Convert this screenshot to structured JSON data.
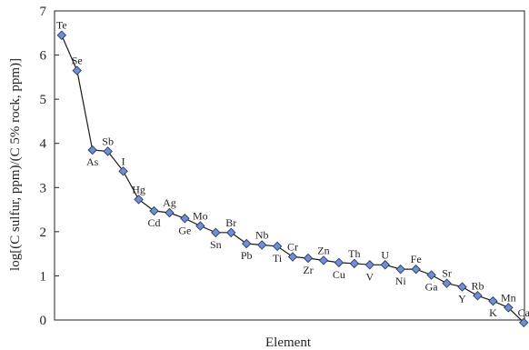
{
  "chart_data": {
    "type": "line",
    "xlabel": "Element",
    "ylabel": "log[(C sulfur, ppm)/(C 5% rock, ppm)]",
    "ylim": [
      0,
      7
    ],
    "yticks": [
      "0",
      "1",
      "2",
      "3",
      "4",
      "5",
      "6",
      "7"
    ],
    "grid": false,
    "colors": {
      "line": "#1a1a1a",
      "marker": "#6f8fd0",
      "marker_edge": "#2b3a6b"
    },
    "points": [
      {
        "label": "Te",
        "y": 6.45,
        "pos": "above"
      },
      {
        "label": "Se",
        "y": 5.65,
        "pos": "above"
      },
      {
        "label": "As",
        "y": 3.85,
        "pos": "below"
      },
      {
        "label": "Sb",
        "y": 3.82,
        "pos": "above"
      },
      {
        "label": "I",
        "y": 3.37,
        "pos": "above"
      },
      {
        "label": "Hg",
        "y": 2.73,
        "pos": "above"
      },
      {
        "label": "Cd",
        "y": 2.47,
        "pos": "below"
      },
      {
        "label": "Ag",
        "y": 2.43,
        "pos": "above"
      },
      {
        "label": "Ge",
        "y": 2.3,
        "pos": "below"
      },
      {
        "label": "Mo",
        "y": 2.13,
        "pos": "above"
      },
      {
        "label": "Sn",
        "y": 1.98,
        "pos": "below"
      },
      {
        "label": "Br",
        "y": 1.98,
        "pos": "above"
      },
      {
        "label": "Pb",
        "y": 1.73,
        "pos": "below"
      },
      {
        "label": "Nb",
        "y": 1.7,
        "pos": "above"
      },
      {
        "label": "Ti",
        "y": 1.67,
        "pos": "below"
      },
      {
        "label": "Cr",
        "y": 1.43,
        "pos": "above"
      },
      {
        "label": "Zr",
        "y": 1.4,
        "pos": "below"
      },
      {
        "label": "Zn",
        "y": 1.35,
        "pos": "above"
      },
      {
        "label": "Cu",
        "y": 1.3,
        "pos": "below"
      },
      {
        "label": "Th",
        "y": 1.28,
        "pos": "above"
      },
      {
        "label": "V",
        "y": 1.25,
        "pos": "below"
      },
      {
        "label": "U",
        "y": 1.25,
        "pos": "above"
      },
      {
        "label": "Ni",
        "y": 1.15,
        "pos": "below"
      },
      {
        "label": "Fe",
        "y": 1.15,
        "pos": "above"
      },
      {
        "label": "Ga",
        "y": 1.02,
        "pos": "below"
      },
      {
        "label": "Sr",
        "y": 0.83,
        "pos": "above"
      },
      {
        "label": "Y",
        "y": 0.75,
        "pos": "below"
      },
      {
        "label": "Rb",
        "y": 0.55,
        "pos": "above"
      },
      {
        "label": "K",
        "y": 0.43,
        "pos": "below"
      },
      {
        "label": "Mn",
        "y": 0.28,
        "pos": "above"
      },
      {
        "label": "Ca",
        "y": -0.06,
        "pos": "above"
      }
    ]
  }
}
